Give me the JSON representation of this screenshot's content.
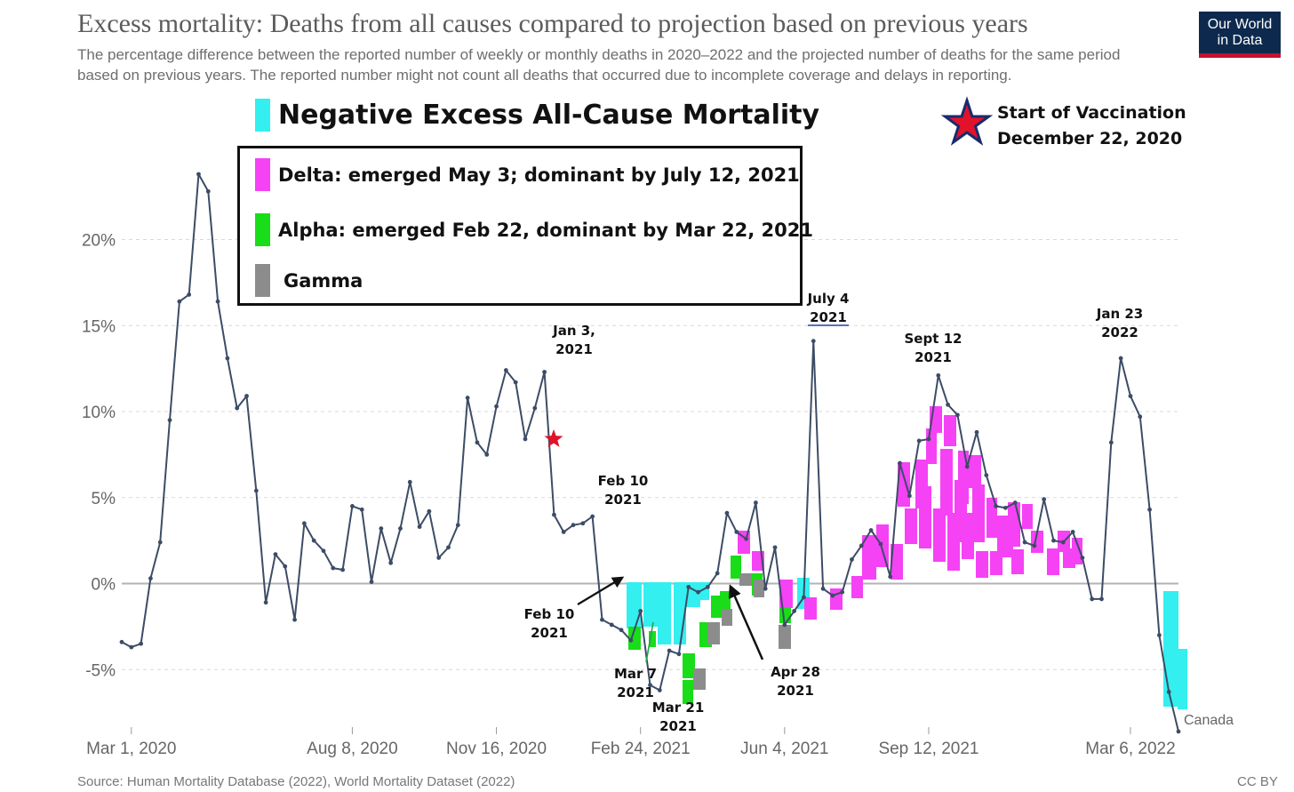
{
  "header": {
    "title": "Excess mortality: Deaths from all causes compared to projection based on previous years",
    "subtitle": "The percentage difference between the reported number of weekly or monthly deaths in 2020–2022 and the projected number of deaths for the same period based on previous years. The reported number might not count all deaths that occurred due to incomplete coverage and delays in reporting.",
    "logo_line1": "Our World",
    "logo_line2": "in Data"
  },
  "footer": {
    "source": "Source: Human Mortality Database (2022), World Mortality Dataset (2022)",
    "license": "CC BY"
  },
  "colors": {
    "line": "#3d4c66",
    "grid": "#d9d9d9",
    "zero_line": "#b3b3b3",
    "negative_excess": "#33eff0",
    "delta": "#f542f5",
    "alpha": "#19dd19",
    "gamma": "#8c8c8c",
    "star": "#e0132b"
  },
  "legend": {
    "title": "Negative Excess All-Cause Mortality",
    "items": [
      {
        "label": "Delta: emerged May 3; dominant by July 12, 2021",
        "color": "#f542f5"
      },
      {
        "label": "Alpha: emerged Feb 22, dominant by Mar 22, 2021",
        "color": "#19dd19"
      },
      {
        "label": "Gamma",
        "color": "#8c8c8c"
      }
    ]
  },
  "vaccination": {
    "line1": "Start of Vaccination",
    "line2": "December 22, 2020"
  },
  "annotations": [
    {
      "id": "jan3",
      "lines": [
        "Jan 3,",
        "2021"
      ]
    },
    {
      "id": "feb10-top",
      "lines": [
        "Feb 10",
        "2021"
      ]
    },
    {
      "id": "feb10-bottom",
      "lines": [
        "Feb 10",
        "2021"
      ]
    },
    {
      "id": "mar7",
      "lines": [
        "Mar 7",
        "2021"
      ]
    },
    {
      "id": "mar21",
      "lines": [
        "Mar 21",
        "2021"
      ]
    },
    {
      "id": "apr28",
      "lines": [
        "Apr 28",
        "2021"
      ]
    },
    {
      "id": "jul4",
      "lines": [
        "July 4",
        "2021"
      ]
    },
    {
      "id": "sep12",
      "lines": [
        "Sept 12",
        "2021"
      ]
    },
    {
      "id": "jan23",
      "lines": [
        "Jan 23",
        "2022"
      ]
    }
  ],
  "chart_data": {
    "type": "line",
    "title": "Excess mortality: Deaths from all causes compared to projection based on previous years",
    "xlabel": "",
    "ylabel": "",
    "ylim": [
      -8.8,
      24
    ],
    "y_ticks": [
      -5,
      0,
      5,
      10,
      15,
      20
    ],
    "y_tick_labels": [
      "-5%",
      "0%",
      "5%",
      "10%",
      "15%",
      "20%"
    ],
    "x_tick_labels": [
      "Mar 1, 2020",
      "Aug 8, 2020",
      "Nov 16, 2020",
      "Feb 24, 2021",
      "Jun 4, 2021",
      "Sep 12, 2021",
      "Mar 6, 2022"
    ],
    "grid": true,
    "series": [
      {
        "name": "Canada",
        "values": [
          -3.4,
          -3.7,
          -3.5,
          0.3,
          2.4,
          9.5,
          16.4,
          16.8,
          23.8,
          22.8,
          16.4,
          13.1,
          10.2,
          10.9,
          5.4,
          -1.1,
          1.7,
          1.0,
          -2.1,
          3.5,
          2.5,
          1.9,
          0.9,
          0.8,
          4.5,
          4.3,
          0.1,
          3.2,
          1.2,
          3.2,
          5.9,
          3.3,
          4.2,
          1.5,
          2.1,
          3.4,
          10.8,
          8.2,
          7.5,
          10.3,
          12.4,
          11.7,
          8.4,
          10.2,
          12.3,
          4.0,
          3.0,
          3.4,
          3.5,
          3.9,
          -2.1,
          -2.4,
          -2.7,
          -3.3,
          -1.6,
          -5.9,
          -6.2,
          -3.9,
          -4.1,
          -0.2,
          -0.5,
          -0.2,
          0.6,
          4.1,
          3.0,
          2.6,
          4.7,
          -0.3,
          2.1,
          -2.4,
          -1.6,
          -0.8,
          14.1,
          -0.3,
          -0.7,
          -0.5,
          1.4,
          2.2,
          3.1,
          2.3,
          0.4,
          7.0,
          5.1,
          8.3,
          8.4,
          12.1,
          10.4,
          9.8,
          6.8,
          8.8,
          6.3,
          4.5,
          4.4,
          4.7,
          2.4,
          2.2,
          4.9,
          2.5,
          2.4,
          3.0,
          1.5,
          -0.9,
          -0.9,
          8.2,
          13.1,
          10.9,
          9.7,
          4.3,
          -3.0,
          -6.3,
          -8.6
        ]
      }
    ],
    "vaccination_start": {
      "label": "December 22, 2020",
      "value": 8.4
    }
  }
}
